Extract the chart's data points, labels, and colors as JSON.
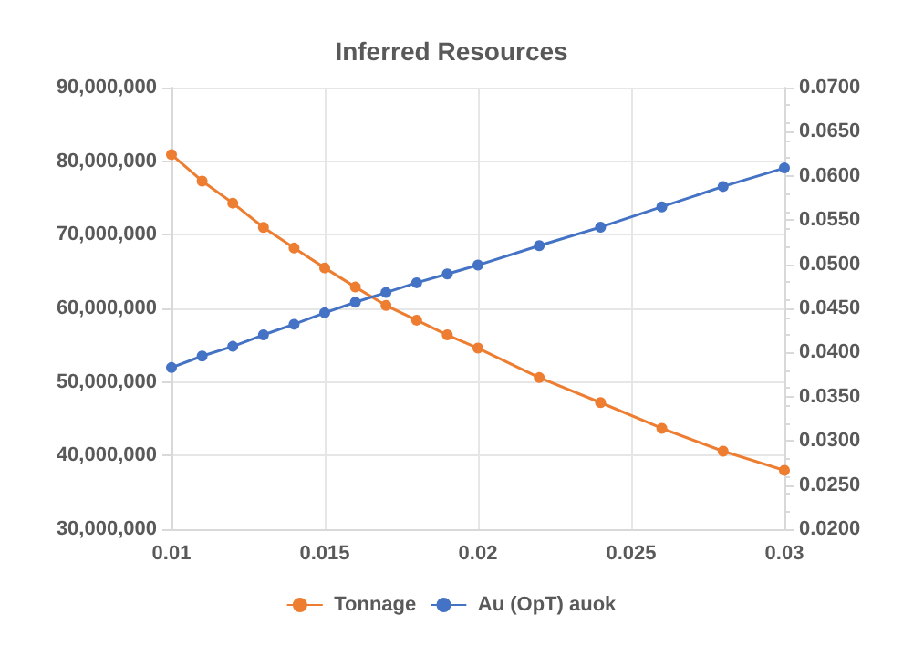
{
  "chart_data": {
    "type": "line",
    "title": "Inferred Resources",
    "x": [
      0.01,
      0.011,
      0.012,
      0.013,
      0.014,
      0.015,
      0.016,
      0.017,
      0.018,
      0.019,
      0.02,
      0.022,
      0.024,
      0.026,
      0.028,
      0.03
    ],
    "series": [
      {
        "name": "Tonnage",
        "color": "#ed7d31",
        "values": [
          80900000,
          77300000,
          74300000,
          71000000,
          68200000,
          65500000,
          62900000,
          60400000,
          58400000,
          56400000,
          54600000,
          50600000,
          47200000,
          43700000,
          40600000,
          38000000
        ]
      },
      {
        "name": "Au (OpT) auok",
        "color": "#4472c4",
        "axis": "y2",
        "values": [
          0.0383,
          0.0396,
          0.0407,
          0.042,
          0.0432,
          0.0445,
          0.0457,
          0.0468,
          0.0479,
          0.0489,
          0.0499,
          0.0521,
          0.0542,
          0.0565,
          0.0588,
          0.0609
        ]
      }
    ],
    "xlim": [
      0.01,
      0.03
    ],
    "xticks": [
      0.01,
      0.015,
      0.02,
      0.025,
      0.03
    ],
    "ylim": [
      30000000,
      90000000
    ],
    "yticks": [
      {
        "value": 30000000,
        "label": "30,000,000"
      },
      {
        "value": 40000000,
        "label": "40,000,000"
      },
      {
        "value": 50000000,
        "label": "50,000,000"
      },
      {
        "value": 60000000,
        "label": "60,000,000"
      },
      {
        "value": 70000000,
        "label": "70,000,000"
      },
      {
        "value": 80000000,
        "label": "80,000,000"
      },
      {
        "value": 90000000,
        "label": "90,000,000"
      }
    ],
    "y2lim": [
      0.02,
      0.07
    ],
    "y2ticks": [
      {
        "value": 0.02,
        "label": "0.0200"
      },
      {
        "value": 0.025,
        "label": "0.0250"
      },
      {
        "value": 0.03,
        "label": "0.0300"
      },
      {
        "value": 0.035,
        "label": "0.0350"
      },
      {
        "value": 0.04,
        "label": "0.0400"
      },
      {
        "value": 0.045,
        "label": "0.0450"
      },
      {
        "value": 0.05,
        "label": "0.0500"
      },
      {
        "value": 0.055,
        "label": "0.0550"
      },
      {
        "value": 0.06,
        "label": "0.0600"
      },
      {
        "value": 0.065,
        "label": "0.0650"
      },
      {
        "value": 0.07,
        "label": "0.0700"
      }
    ],
    "grid": true,
    "legend": "bottom",
    "marker": "circle",
    "line_style": "solid"
  }
}
